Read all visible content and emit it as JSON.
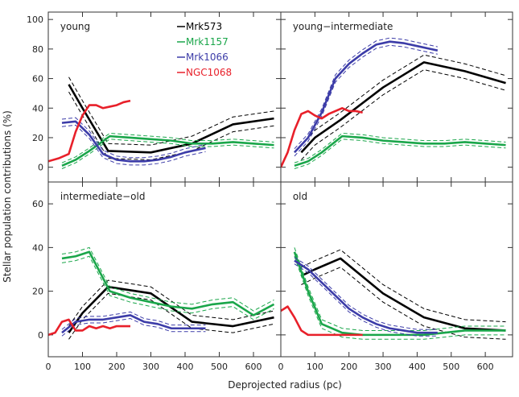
{
  "chart_data": {
    "type": "line",
    "ylabel": "Stellar population contributions (%)",
    "xlabel": "Deprojected radius (pc)",
    "xlim": [
      0,
      680
    ],
    "top_ylim": [
      -10,
      105
    ],
    "bottom_ylim": [
      -10,
      70
    ],
    "top_yticks": [
      0,
      20,
      40,
      60,
      80,
      100
    ],
    "bottom_yticks": [
      0,
      20,
      40,
      60
    ],
    "xticks": [
      0,
      100,
      200,
      300,
      400,
      500,
      600
    ],
    "legend": {
      "placement": "top-left panel, upper right",
      "entries": [
        {
          "label": "Mrk573",
          "color": "#000000"
        },
        {
          "label": "Mrk1157",
          "color": "#1aa64a"
        },
        {
          "label": "Mrk1066",
          "color": "#3c3ca8"
        },
        {
          "label": "NGC1068",
          "color": "#e8202a"
        }
      ]
    },
    "panels": [
      {
        "title": "young",
        "series": [
          {
            "name": "Mrk573",
            "color": "#000000",
            "x": [
              60,
              100,
              175,
              300,
              420,
              540,
              660
            ],
            "y": [
              56,
              40,
              11,
              10,
              16,
              29,
              33
            ],
            "band": 5
          },
          {
            "name": "Mrk1157",
            "color": "#1aa64a",
            "x": [
              40,
              80,
              120,
              180,
              240,
              300,
              360,
              420,
              480,
              540,
              600,
              660
            ],
            "y": [
              1,
              5,
              11,
              21,
              20,
              19,
              18,
              16,
              16,
              17,
              16,
              15
            ],
            "band": 2
          },
          {
            "name": "Mrk1066",
            "color": "#3c3ca8",
            "x": [
              40,
              80,
              120,
              160,
              200,
              240,
              280,
              320,
              360,
              400,
              440,
              460
            ],
            "y": [
              30,
              31,
              22,
              9,
              5,
              4,
              4,
              5,
              7,
              10,
              12,
              13
            ],
            "band": 2.5
          },
          {
            "name": "NGC1068",
            "color": "#e8202a",
            "x": [
              0,
              30,
              60,
              80,
              100,
              120,
              140,
              160,
              180,
              200,
              220,
              240
            ],
            "y": [
              4,
              6,
              9,
              24,
              35,
              42,
              42,
              40,
              41,
              42,
              44,
              45
            ],
            "band": 0
          }
        ]
      },
      {
        "title": "young−intermediate",
        "series": [
          {
            "name": "Mrk573",
            "color": "#000000",
            "x": [
              60,
              100,
              175,
              300,
              420,
              540,
              660
            ],
            "y": [
              10,
              20,
              32,
              54,
              71,
              65,
              57
            ],
            "band": 5
          },
          {
            "name": "Mrk1157",
            "color": "#1aa64a",
            "x": [
              40,
              80,
              120,
              180,
              240,
              300,
              360,
              420,
              480,
              540,
              600,
              660
            ],
            "y": [
              1,
              4,
              10,
              21,
              20,
              18,
              17,
              16,
              16,
              17,
              16,
              15
            ],
            "band": 2
          },
          {
            "name": "Mrk1066",
            "color": "#3c3ca8",
            "x": [
              40,
              80,
              120,
              160,
              200,
              240,
              280,
              320,
              360,
              400,
              440,
              460
            ],
            "y": [
              10,
              20,
              37,
              60,
              70,
              77,
              83,
              85,
              84,
              82,
              80,
              79
            ],
            "band": 2.5
          },
          {
            "name": "NGC1068",
            "color": "#e8202a",
            "x": [
              0,
              20,
              40,
              60,
              80,
              100,
              120,
              140,
              160,
              180,
              200,
              220,
              240
            ],
            "y": [
              0,
              10,
              25,
              36,
              38,
              35,
              33,
              36,
              38,
              40,
              38,
              38,
              37
            ],
            "band": 0
          }
        ]
      },
      {
        "title": "intermediate−old",
        "series": [
          {
            "name": "Mrk573",
            "color": "#000000",
            "x": [
              60,
              100,
              175,
              300,
              420,
              540,
              660
            ],
            "y": [
              1,
              10,
              22,
              19,
              6,
              4,
              8
            ],
            "band": 3
          },
          {
            "name": "Mrk1157",
            "color": "#1aa64a",
            "x": [
              40,
              80,
              120,
              180,
              240,
              300,
              360,
              420,
              480,
              540,
              600,
              660
            ],
            "y": [
              35,
              36,
              38,
              20,
              17,
              15,
              13,
              12,
              14,
              15,
              9,
              14
            ],
            "band": 2
          },
          {
            "name": "Mrk1066",
            "color": "#3c3ca8",
            "x": [
              40,
              80,
              120,
              160,
              200,
              240,
              280,
              320,
              360,
              400,
              440,
              460
            ],
            "y": [
              1,
              6,
              7,
              7,
              8,
              9,
              6,
              5,
              3,
              3,
              3,
              3
            ],
            "band": 1.5
          },
          {
            "name": "NGC1068",
            "color": "#e8202a",
            "x": [
              0,
              20,
              40,
              60,
              80,
              100,
              120,
              140,
              160,
              180,
              200,
              220,
              240
            ],
            "y": [
              0,
              1,
              6,
              7,
              2,
              2,
              4,
              3,
              4,
              3,
              4,
              4,
              4
            ],
            "band": 0
          }
        ]
      },
      {
        "title": "old",
        "series": [
          {
            "name": "Mrk573",
            "color": "#000000",
            "x": [
              60,
              100,
              175,
              300,
              420,
              540,
              660
            ],
            "y": [
              27,
              30,
              35,
              19,
              8,
              3,
              2
            ],
            "band": 4
          },
          {
            "name": "Mrk1157",
            "color": "#1aa64a",
            "x": [
              40,
              80,
              120,
              180,
              240,
              300,
              360,
              420,
              480,
              540,
              600,
              660
            ],
            "y": [
              38,
              20,
              5,
              1,
              0,
              0,
              0,
              0,
              1,
              2,
              2,
              2
            ],
            "band": 2
          },
          {
            "name": "Mrk1066",
            "color": "#3c3ca8",
            "x": [
              40,
              80,
              120,
              160,
              200,
              240,
              280,
              320,
              360,
              400,
              440,
              460
            ],
            "y": [
              34,
              30,
              24,
              18,
              12,
              8,
              5,
              3,
              2,
              1,
              1,
              1
            ],
            "band": 1.5
          },
          {
            "name": "NGC1068",
            "color": "#e8202a",
            "x": [
              0,
              20,
              40,
              60,
              80,
              100,
              120,
              140,
              160,
              180,
              200,
              220,
              240
            ],
            "y": [
              11,
              13,
              8,
              2,
              0,
              0,
              0,
              0,
              0,
              0,
              0,
              0,
              0
            ],
            "band": 0
          }
        ]
      }
    ]
  }
}
